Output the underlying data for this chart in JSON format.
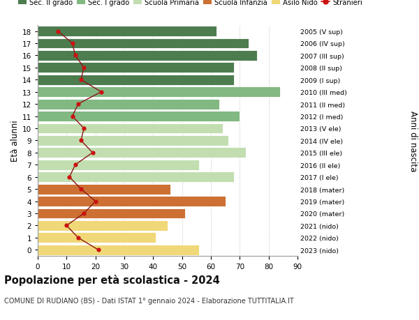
{
  "ages": [
    18,
    17,
    16,
    15,
    14,
    13,
    12,
    11,
    10,
    9,
    8,
    7,
    6,
    5,
    4,
    3,
    2,
    1,
    0
  ],
  "anni_nascita": [
    "2005 (V sup)",
    "2006 (IV sup)",
    "2007 (III sup)",
    "2008 (II sup)",
    "2009 (I sup)",
    "2010 (III med)",
    "2011 (II med)",
    "2012 (I med)",
    "2013 (V ele)",
    "2014 (IV ele)",
    "2015 (III ele)",
    "2016 (II ele)",
    "2017 (I ele)",
    "2018 (mater)",
    "2019 (mater)",
    "2020 (mater)",
    "2021 (nido)",
    "2022 (nido)",
    "2023 (nido)"
  ],
  "bar_values": [
    62,
    73,
    76,
    68,
    68,
    84,
    63,
    70,
    64,
    66,
    72,
    56,
    68,
    46,
    65,
    51,
    45,
    41,
    56
  ],
  "bar_colors": [
    "#4d7c4f",
    "#4d7c4f",
    "#4d7c4f",
    "#4d7c4f",
    "#4d7c4f",
    "#82b882",
    "#82b882",
    "#82b882",
    "#c2deb0",
    "#c2deb0",
    "#c2deb0",
    "#c2deb0",
    "#c2deb0",
    "#cc7033",
    "#cc7033",
    "#cc7033",
    "#f0d878",
    "#f0d878",
    "#f0d878"
  ],
  "stranieri_x": [
    7,
    12,
    13,
    16,
    15,
    22,
    14,
    12,
    16,
    15,
    19,
    13,
    11,
    15,
    20,
    16,
    10,
    14,
    21
  ],
  "legend_labels": [
    "Sec. II grado",
    "Sec. I grado",
    "Scuola Primaria",
    "Scuola Infanzia",
    "Asilo Nido",
    "Stranieri"
  ],
  "legend_colors": [
    "#4d7c4f",
    "#82b882",
    "#c2deb0",
    "#cc7033",
    "#f0d878",
    "#cc1111"
  ],
  "title": "Popolazione per età scolastica - 2024",
  "subtitle": "COMUNE DI RUDIANO (BS) - Dati ISTAT 1° gennaio 2024 - Elaborazione TUTTITALIA.IT",
  "ylabel_left": "Età alunni",
  "ylabel_right": "Anni di nascita",
  "xlim": [
    0,
    90
  ],
  "xticks": [
    0,
    10,
    20,
    30,
    40,
    50,
    60,
    70,
    80,
    90
  ],
  "bg_color": "#ffffff"
}
